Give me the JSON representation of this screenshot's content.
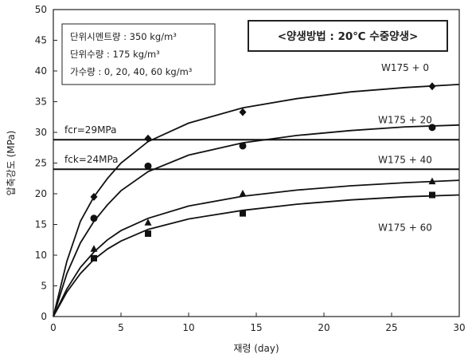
{
  "chart_data": {
    "type": "line",
    "title": "<양생방법 : 20℃ 수중양생>",
    "xlabel": "재령 (day)",
    "ylabel": "압축강도 (MPa)",
    "xlim": [
      0,
      30
    ],
    "ylim": [
      0,
      50
    ],
    "x_ticks": [
      "0",
      "5",
      "10",
      "15",
      "20",
      "25",
      "30"
    ],
    "y_ticks": [
      "0",
      "5",
      "10",
      "15",
      "20",
      "25",
      "30",
      "35",
      "40",
      "45",
      "50"
    ],
    "grid": false,
    "info_box": [
      "단위시멘트량 : 350 kg/m³",
      "단위수량 : 175 kg/m³",
      "가수량 : 0, 20, 40, 60 kg/m³"
    ],
    "reference_lines": [
      {
        "label": "fcr=29MPa",
        "value": 28.8
      },
      {
        "label": "fck=24MPa",
        "value": 24
      }
    ],
    "series": [
      {
        "name": "W175 + 0",
        "marker": "diamond",
        "points": [
          [
            3,
            19.5
          ],
          [
            7,
            29
          ],
          [
            14,
            33.3
          ],
          [
            28,
            37.5
          ]
        ],
        "curve": [
          [
            0,
            0
          ],
          [
            1,
            9
          ],
          [
            2,
            15.5
          ],
          [
            3,
            19.5
          ],
          [
            4,
            22.5
          ],
          [
            5,
            25
          ],
          [
            7,
            28.5
          ],
          [
            10,
            31.5
          ],
          [
            14,
            34
          ],
          [
            18,
            35.5
          ],
          [
            22,
            36.6
          ],
          [
            26,
            37.3
          ],
          [
            30,
            37.8
          ]
        ]
      },
      {
        "name": "W175 + 20",
        "marker": "circle",
        "points": [
          [
            3,
            16
          ],
          [
            7,
            24.5
          ],
          [
            14,
            27.8
          ],
          [
            28,
            30.8
          ]
        ],
        "curve": [
          [
            0,
            0
          ],
          [
            1,
            7
          ],
          [
            2,
            12
          ],
          [
            3,
            15.5
          ],
          [
            4,
            18.2
          ],
          [
            5,
            20.5
          ],
          [
            7,
            23.6
          ],
          [
            10,
            26.3
          ],
          [
            14,
            28.3
          ],
          [
            18,
            29.5
          ],
          [
            22,
            30.3
          ],
          [
            26,
            30.9
          ],
          [
            30,
            31.2
          ]
        ]
      },
      {
        "name": "W175 + 40",
        "marker": "triangle",
        "points": [
          [
            3,
            11
          ],
          [
            7,
            15.3
          ],
          [
            14,
            20
          ],
          [
            28,
            22
          ]
        ],
        "curve": [
          [
            0,
            0
          ],
          [
            1,
            4.5
          ],
          [
            2,
            8
          ],
          [
            3,
            10.5
          ],
          [
            4,
            12.5
          ],
          [
            5,
            14
          ],
          [
            7,
            16
          ],
          [
            10,
            18
          ],
          [
            14,
            19.6
          ],
          [
            18,
            20.6
          ],
          [
            22,
            21.3
          ],
          [
            26,
            21.8
          ],
          [
            30,
            22.2
          ]
        ]
      },
      {
        "name": "W175 + 60",
        "marker": "square",
        "points": [
          [
            3,
            9.5
          ],
          [
            7,
            13.5
          ],
          [
            14,
            16.8
          ],
          [
            28,
            19.8
          ]
        ],
        "curve": [
          [
            0,
            0
          ],
          [
            1,
            4
          ],
          [
            2,
            7
          ],
          [
            3,
            9.3
          ],
          [
            4,
            11
          ],
          [
            5,
            12.3
          ],
          [
            7,
            14.2
          ],
          [
            10,
            15.9
          ],
          [
            14,
            17.3
          ],
          [
            18,
            18.3
          ],
          [
            22,
            19
          ],
          [
            26,
            19.5
          ],
          [
            30,
            19.8
          ]
        ]
      }
    ]
  }
}
